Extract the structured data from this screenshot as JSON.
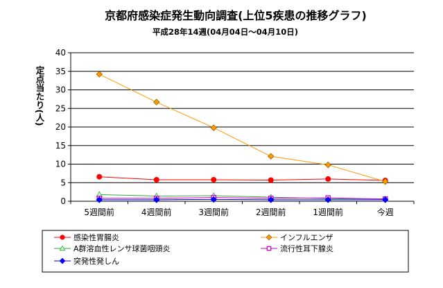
{
  "chart_data": {
    "type": "line",
    "title": "京都府感染症発生動向調査(上位5疾患の推移グラフ)",
    "subtitle": "平成28年14週(04月04日～04月10日)",
    "ylabel": "定点当たり(人)",
    "xlabel": "",
    "categories": [
      "5週間前",
      "4週間前",
      "3週間前",
      "2週間前",
      "1週間前",
      "今週"
    ],
    "ylim": [
      0,
      40
    ],
    "yticks": [
      "0",
      "5",
      "10",
      "15",
      "20",
      "25",
      "30",
      "35",
      "40"
    ],
    "grid": true,
    "legend_position": "bottom",
    "series": [
      {
        "name": "感染性胃腸炎",
        "color": "#ff0000",
        "marker": "circle",
        "values": [
          6.6,
          5.8,
          5.8,
          5.7,
          6.0,
          5.6
        ]
      },
      {
        "name": "インフルエンザ",
        "color": "#ff9900",
        "marker": "diamond",
        "values": [
          34.2,
          26.7,
          19.8,
          12.1,
          9.8,
          5.3
        ]
      },
      {
        "name": "A群溶血性レンサ球菌咽頭炎",
        "color": "#33aa33",
        "marker": "triangle",
        "values": [
          1.8,
          1.4,
          1.5,
          1.1,
          0.7,
          0.6
        ]
      },
      {
        "name": "流行性耳下腺炎",
        "color": "#cc00cc",
        "marker": "square",
        "values": [
          0.8,
          0.8,
          1.0,
          0.8,
          0.9,
          0.6
        ]
      },
      {
        "name": "突発性発しん",
        "color": "#0000ff",
        "marker": "diamond",
        "values": [
          0.4,
          0.4,
          0.5,
          0.4,
          0.4,
          0.4
        ]
      }
    ]
  }
}
